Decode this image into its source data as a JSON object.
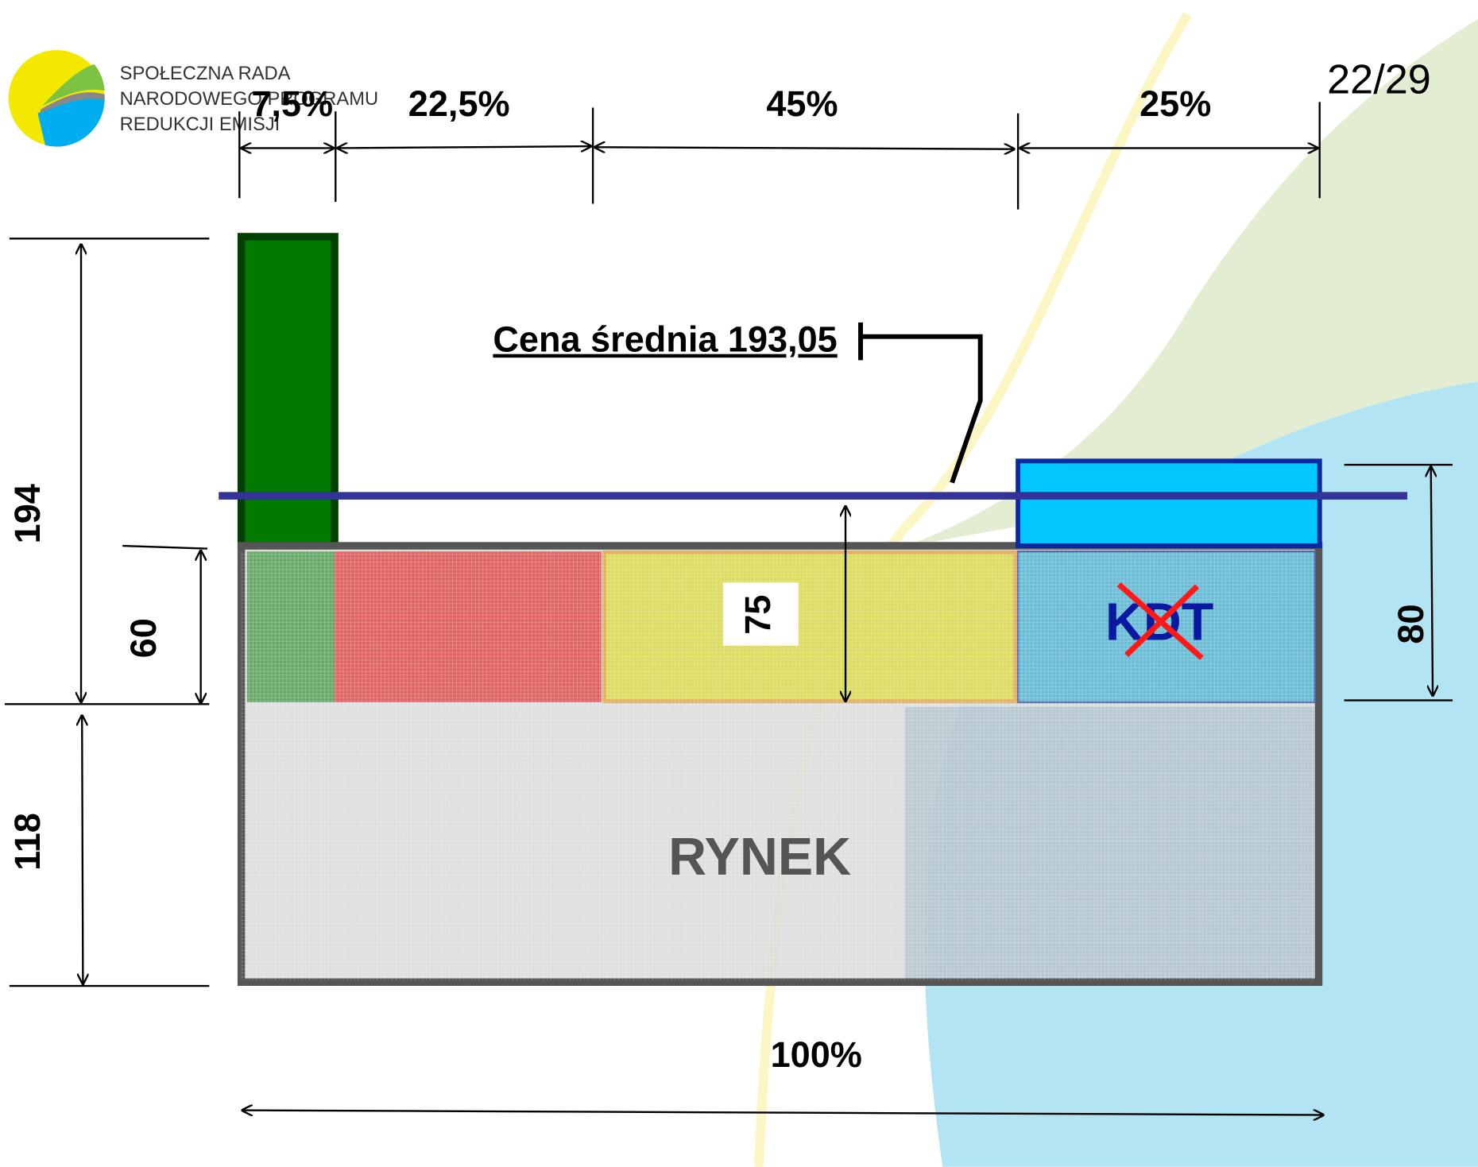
{
  "header": {
    "org_lines": [
      "SPOŁECZNA RADA",
      "NARODOWEGO PROGRAMU",
      "REDUKCJI EMISJI"
    ],
    "page": "22/29"
  },
  "shares": [
    "7,5%",
    "22,5%",
    "45%",
    "25%"
  ],
  "total_share": "100%",
  "heights": {
    "total": "194",
    "lower": "60",
    "market": "118",
    "middle": "75",
    "right": "80"
  },
  "average_price": "Cena średnia 193,05",
  "kdt": "KDT",
  "market": "RYNEK"
}
